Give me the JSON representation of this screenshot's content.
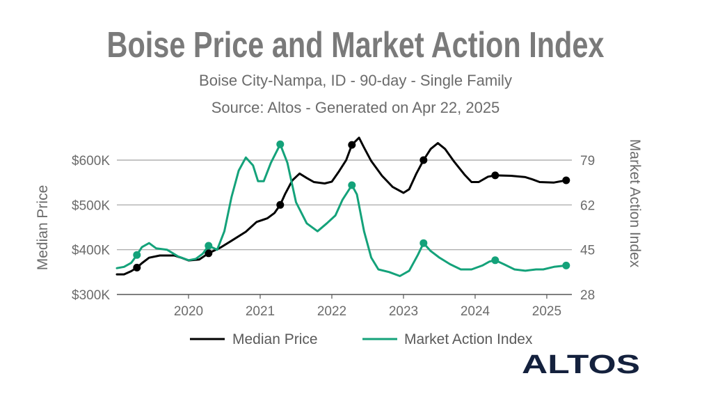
{
  "chart_data": {
    "type": "line",
    "title": "Boise Price and Market Action Index",
    "subtitle_1": "Boise City-Nampa, ID - 90-day - Single Family",
    "subtitle_2": "Source: Altos - Generated on Apr 22, 2025",
    "ylabel_left": "Median Price",
    "ylabel_right": "Market Action Index",
    "ylim_left": [
      300000,
      600000
    ],
    "ylim_right": [
      28,
      79
    ],
    "y_ticks_left": [
      "$300K",
      "$400K",
      "$500K",
      "$600K"
    ],
    "y_ticks_right": [
      "28",
      "45",
      "62",
      "79"
    ],
    "x_ticks": [
      "2020",
      "2021",
      "2022",
      "2023",
      "2024",
      "2025"
    ],
    "grid": true,
    "legend_position": "bottom",
    "series": [
      {
        "name": "Median Price",
        "axis": "left",
        "color": "#000000",
        "points": [
          [
            2019.0,
            345000
          ],
          [
            2019.1,
            345000
          ],
          [
            2019.2,
            352000
          ],
          [
            2019.28,
            360000
          ],
          [
            2019.35,
            370000
          ],
          [
            2019.45,
            382000
          ],
          [
            2019.6,
            387000
          ],
          [
            2019.8,
            387000
          ],
          [
            2019.9,
            382000
          ],
          [
            2020.0,
            376000
          ],
          [
            2020.15,
            378000
          ],
          [
            2020.28,
            392000
          ],
          [
            2020.45,
            405000
          ],
          [
            2020.6,
            420000
          ],
          [
            2020.8,
            440000
          ],
          [
            2020.95,
            462000
          ],
          [
            2021.1,
            470000
          ],
          [
            2021.2,
            482000
          ],
          [
            2021.28,
            500000
          ],
          [
            2021.35,
            525000
          ],
          [
            2021.45,
            555000
          ],
          [
            2021.55,
            570000
          ],
          [
            2021.65,
            560000
          ],
          [
            2021.75,
            551000
          ],
          [
            2021.9,
            548000
          ],
          [
            2022.0,
            552000
          ],
          [
            2022.1,
            575000
          ],
          [
            2022.2,
            600000
          ],
          [
            2022.28,
            634000
          ],
          [
            2022.38,
            650000
          ],
          [
            2022.45,
            628000
          ],
          [
            2022.55,
            598000
          ],
          [
            2022.7,
            565000
          ],
          [
            2022.85,
            540000
          ],
          [
            2023.0,
            527000
          ],
          [
            2023.08,
            535000
          ],
          [
            2023.18,
            570000
          ],
          [
            2023.28,
            600000
          ],
          [
            2023.38,
            625000
          ],
          [
            2023.48,
            638000
          ],
          [
            2023.58,
            625000
          ],
          [
            2023.7,
            598000
          ],
          [
            2023.85,
            568000
          ],
          [
            2023.95,
            551000
          ],
          [
            2024.05,
            551000
          ],
          [
            2024.18,
            563000
          ],
          [
            2024.28,
            566000
          ],
          [
            2024.5,
            565000
          ],
          [
            2024.7,
            562000
          ],
          [
            2024.8,
            557000
          ],
          [
            2024.9,
            551000
          ],
          [
            2025.1,
            550000
          ],
          [
            2025.27,
            555000
          ]
        ],
        "markers": [
          [
            2019.28,
            360000
          ],
          [
            2020.28,
            392000
          ],
          [
            2021.28,
            500000
          ],
          [
            2022.28,
            634000
          ],
          [
            2023.28,
            600000
          ],
          [
            2024.28,
            566000
          ],
          [
            2025.27,
            555000
          ]
        ]
      },
      {
        "name": "Market Action Index",
        "axis": "right",
        "color": "#14a27a",
        "points": [
          [
            2019.0,
            38.0
          ],
          [
            2019.1,
            38.5
          ],
          [
            2019.2,
            40.0
          ],
          [
            2019.28,
            43.0
          ],
          [
            2019.35,
            46.0
          ],
          [
            2019.45,
            47.5
          ],
          [
            2019.55,
            45.5
          ],
          [
            2019.7,
            45.0
          ],
          [
            2019.85,
            42.5
          ],
          [
            2020.0,
            41.0
          ],
          [
            2020.1,
            41.5
          ],
          [
            2020.2,
            43.5
          ],
          [
            2020.28,
            46.5
          ],
          [
            2020.4,
            45.0
          ],
          [
            2020.5,
            52.0
          ],
          [
            2020.6,
            65.0
          ],
          [
            2020.7,
            75.0
          ],
          [
            2020.8,
            80.0
          ],
          [
            2020.9,
            77.0
          ],
          [
            2020.97,
            71.0
          ],
          [
            2021.05,
            71.0
          ],
          [
            2021.15,
            78.0
          ],
          [
            2021.28,
            85.0
          ],
          [
            2021.38,
            78.0
          ],
          [
            2021.5,
            63.0
          ],
          [
            2021.65,
            55.0
          ],
          [
            2021.8,
            52.0
          ],
          [
            2021.93,
            55.0
          ],
          [
            2022.05,
            58.0
          ],
          [
            2022.15,
            64.0
          ],
          [
            2022.28,
            69.5
          ],
          [
            2022.35,
            66.0
          ],
          [
            2022.45,
            52.0
          ],
          [
            2022.55,
            42.0
          ],
          [
            2022.65,
            37.5
          ],
          [
            2022.8,
            36.5
          ],
          [
            2022.95,
            35.0
          ],
          [
            2023.08,
            37.0
          ],
          [
            2023.2,
            43.0
          ],
          [
            2023.28,
            47.5
          ],
          [
            2023.38,
            44.5
          ],
          [
            2023.5,
            42.0
          ],
          [
            2023.65,
            39.5
          ],
          [
            2023.8,
            37.5
          ],
          [
            2023.95,
            37.5
          ],
          [
            2024.1,
            39.0
          ],
          [
            2024.2,
            40.5
          ],
          [
            2024.28,
            41.0
          ],
          [
            2024.4,
            39.5
          ],
          [
            2024.55,
            37.5
          ],
          [
            2024.7,
            37.0
          ],
          [
            2024.85,
            37.5
          ],
          [
            2024.95,
            37.5
          ],
          [
            2025.1,
            38.5
          ],
          [
            2025.27,
            39.0
          ]
        ],
        "markers": [
          [
            2019.28,
            43.0
          ],
          [
            2020.28,
            46.5
          ],
          [
            2021.28,
            85.0
          ],
          [
            2022.28,
            69.5
          ],
          [
            2023.28,
            47.5
          ],
          [
            2024.28,
            41.0
          ],
          [
            2025.27,
            39.0
          ]
        ]
      }
    ]
  },
  "logo": "ALTOS"
}
